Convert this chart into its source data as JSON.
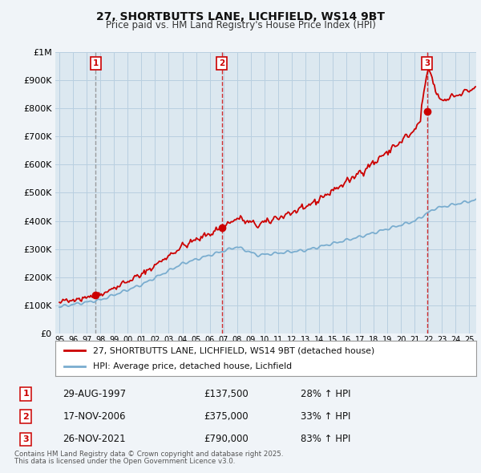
{
  "title": "27, SHORTBUTTS LANE, LICHFIELD, WS14 9BT",
  "subtitle": "Price paid vs. HM Land Registry's House Price Index (HPI)",
  "legend_property": "27, SHORTBUTTS LANE, LICHFIELD, WS14 9BT (detached house)",
  "legend_hpi": "HPI: Average price, detached house, Lichfield",
  "transactions": [
    {
      "label": "1",
      "date": "29-AUG-1997",
      "price": 137500,
      "pct": "28%",
      "dir": "↑",
      "year": 1997.66
    },
    {
      "label": "2",
      "date": "17-NOV-2006",
      "price": 375000,
      "pct": "33%",
      "dir": "↑",
      "year": 2006.88
    },
    {
      "label": "3",
      "date": "26-NOV-2021",
      "price": 790000,
      "pct": "83%",
      "dir": "↑",
      "year": 2021.9
    }
  ],
  "footer1": "Contains HM Land Registry data © Crown copyright and database right 2025.",
  "footer2": "This data is licensed under the Open Government Licence v3.0.",
  "bg_color": "#f0f4f8",
  "plot_bg": "#dce8f0",
  "grid_color": "#b8cfe0",
  "red_color": "#cc0000",
  "blue_color": "#7aadcf",
  "vline_color": "#aaaaaa",
  "vline_color2": "#cc0000",
  "marker_box_color": "#cc0000",
  "ylim": [
    0,
    1000000
  ],
  "xlim_start": 1994.7,
  "xlim_end": 2025.5
}
